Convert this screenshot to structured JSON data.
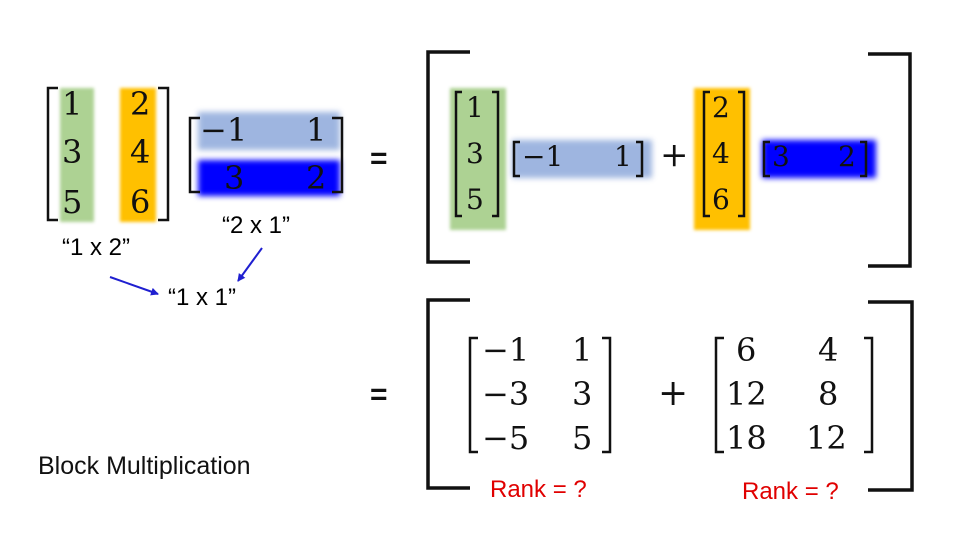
{
  "left_matrix": {
    "col1": [
      "1",
      "3",
      "5"
    ],
    "col2": [
      "2",
      "4",
      "6"
    ],
    "label": "“1 x 2”"
  },
  "right_matrix": {
    "row1": [
      "−1",
      "1"
    ],
    "row2": [
      "3",
      "2"
    ],
    "label": "“2 x 1”"
  },
  "result_label": "“1 x 1”",
  "equals_sign": "=",
  "plus_sign": "+",
  "expansion": {
    "col_a": [
      "1",
      "3",
      "5"
    ],
    "row_a": [
      "−1",
      "1"
    ],
    "col_b": [
      "2",
      "4",
      "6"
    ],
    "row_b": [
      "3",
      "2"
    ]
  },
  "result": {
    "matrix_a": [
      [
        "−1",
        "1"
      ],
      [
        "−3",
        "3"
      ],
      [
        "−5",
        "5"
      ]
    ],
    "matrix_b": [
      [
        "6",
        "4"
      ],
      [
        "12",
        "8"
      ],
      [
        "18",
        "12"
      ]
    ],
    "rank_a": "Rank = ?",
    "rank_b": "Rank = ?"
  },
  "caption": "Block Multiplication",
  "colors": {
    "green": "#a9d08e",
    "orange": "#ffc000",
    "light_blue": "#8ea9db",
    "blue": "#0000ff",
    "arrow": "#1f1fd0",
    "rank": "#e00000"
  }
}
